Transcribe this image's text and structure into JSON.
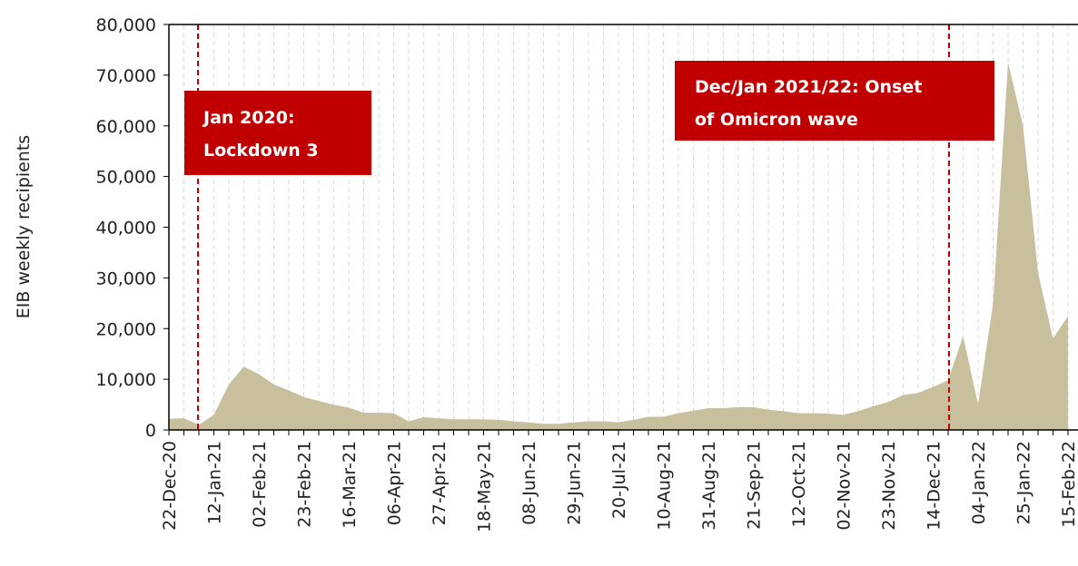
{
  "chart_data": {
    "type": "area",
    "y_label": "EIB weekly recipients",
    "categories": [
      "22-Dec-20",
      null,
      null,
      "12-Jan-21",
      null,
      null,
      "02-Feb-21",
      null,
      null,
      "23-Feb-21",
      null,
      null,
      "16-Mar-21",
      null,
      null,
      "06-Apr-21",
      null,
      null,
      "27-Apr-21",
      null,
      null,
      "18-May-21",
      null,
      null,
      "08-Jun-21",
      null,
      null,
      "29-Jun-21",
      null,
      null,
      "20-Jul-21",
      null,
      null,
      "10-Aug-21",
      null,
      null,
      "31-Aug-21",
      null,
      null,
      "21-Sep-21",
      null,
      null,
      "12-Oct-21",
      null,
      null,
      "02-Nov-21",
      null,
      null,
      "23-Nov-21",
      null,
      null,
      "14-Dec-21",
      null,
      null,
      "04-Jan-22",
      null,
      null,
      "25-Jan-22",
      null,
      null,
      "15-Feb-22"
    ],
    "values": [
      2200,
      2300,
      1000,
      3000,
      9000,
      12500,
      11000,
      9000,
      7800,
      6500,
      5700,
      5000,
      4400,
      3400,
      3400,
      3300,
      1700,
      2500,
      2300,
      2100,
      2100,
      2100,
      2000,
      1700,
      1500,
      1200,
      1200,
      1500,
      1700,
      1700,
      1500,
      2000,
      2600,
      2600,
      3300,
      3800,
      4300,
      4300,
      4500,
      4500,
      4000,
      3700,
      3300,
      3300,
      3200,
      3000,
      3700,
      4700,
      5500,
      6900,
      7300,
      8500,
      9800,
      18500,
      5000,
      25000,
      72500,
      60000,
      31000,
      18000,
      22500
    ],
    "color": "#c8bf9d",
    "ylim": [
      0,
      80000
    ],
    "yticks": [
      0,
      {
        "value": 10000,
        "label": "10,000"
      },
      {
        "value": 20000,
        "label": "20,000"
      },
      {
        "value": 30000,
        "label": "30,000"
      },
      {
        "value": 40000,
        "label": "40,000"
      },
      {
        "value": 50000,
        "label": "50,000"
      },
      {
        "value": 60000,
        "label": "60,000"
      },
      {
        "value": 70000,
        "label": "70,000"
      },
      {
        "value": 80000,
        "label": "80,000"
      }
    ],
    "annotations": [
      [
        "Jan 2020:",
        "Lockdown 3"
      ],
      [
        "Dec/Jan 2021/22: Onset",
        "of Omicron wave"
      ]
    ]
  }
}
